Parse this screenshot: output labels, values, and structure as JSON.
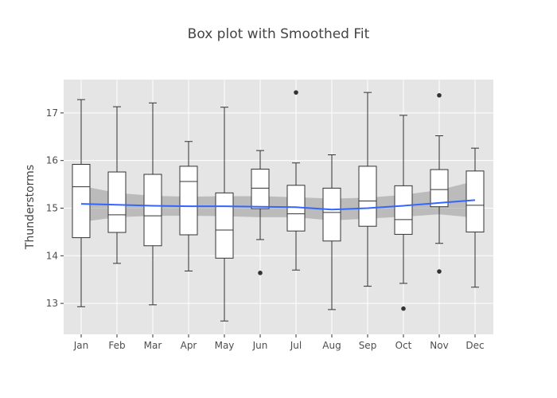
{
  "chart_data": {
    "type": "box",
    "title": "Box plot with Smoothed Fit",
    "xlabel": "",
    "ylabel": "Thunderstorms",
    "ylim": [
      12.35,
      17.7
    ],
    "yticks": [
      13,
      14,
      15,
      16,
      17
    ],
    "grid": true,
    "legend": "none",
    "categories": [
      "Jan",
      "Feb",
      "Mar",
      "Apr",
      "May",
      "Jun",
      "Jul",
      "Aug",
      "Sep",
      "Oct",
      "Nov",
      "Dec"
    ],
    "boxes": [
      {
        "category": "Jan",
        "lower_whisker": 12.93,
        "q1": 14.38,
        "median": 15.45,
        "q3": 15.92,
        "upper_whisker": 17.28,
        "outliers": []
      },
      {
        "category": "Feb",
        "lower_whisker": 13.84,
        "q1": 14.49,
        "median": 14.86,
        "q3": 15.76,
        "upper_whisker": 17.13,
        "outliers": []
      },
      {
        "category": "Mar",
        "lower_whisker": 12.97,
        "q1": 14.21,
        "median": 14.84,
        "q3": 15.71,
        "upper_whisker": 17.21,
        "outliers": []
      },
      {
        "category": "Apr",
        "lower_whisker": 13.68,
        "q1": 14.44,
        "median": 15.56,
        "q3": 15.88,
        "upper_whisker": 16.4,
        "outliers": []
      },
      {
        "category": "May",
        "lower_whisker": 12.63,
        "q1": 13.95,
        "median": 14.54,
        "q3": 15.32,
        "upper_whisker": 17.12,
        "outliers": []
      },
      {
        "category": "Jun",
        "lower_whisker": 14.34,
        "q1": 14.99,
        "median": 15.42,
        "q3": 15.82,
        "upper_whisker": 16.21,
        "outliers": [
          13.64
        ]
      },
      {
        "category": "Jul",
        "lower_whisker": 13.7,
        "q1": 14.52,
        "median": 14.88,
        "q3": 15.48,
        "upper_whisker": 15.95,
        "outliers": [
          17.43
        ]
      },
      {
        "category": "Aug",
        "lower_whisker": 12.87,
        "q1": 14.31,
        "median": 14.91,
        "q3": 15.42,
        "upper_whisker": 16.12,
        "outliers": []
      },
      {
        "category": "Sep",
        "lower_whisker": 13.36,
        "q1": 14.62,
        "median": 15.15,
        "q3": 15.88,
        "upper_whisker": 17.43,
        "outliers": []
      },
      {
        "category": "Oct",
        "lower_whisker": 13.42,
        "q1": 14.45,
        "median": 14.76,
        "q3": 15.47,
        "upper_whisker": 16.95,
        "outliers": [
          12.89
        ]
      },
      {
        "category": "Nov",
        "lower_whisker": 14.26,
        "q1": 15.03,
        "median": 15.39,
        "q3": 15.81,
        "upper_whisker": 16.52,
        "outliers": [
          17.37,
          13.67
        ]
      },
      {
        "category": "Dec",
        "lower_whisker": 13.34,
        "q1": 14.5,
        "median": 15.06,
        "q3": 15.78,
        "upper_whisker": 16.26,
        "outliers": []
      }
    ],
    "smooth_fit": {
      "x": [
        "Jan",
        "Feb",
        "Mar",
        "Apr",
        "May",
        "Jun",
        "Jul",
        "Aug",
        "Sep",
        "Oct",
        "Nov",
        "Dec"
      ],
      "y": [
        15.09,
        15.07,
        15.05,
        15.04,
        15.04,
        15.03,
        15.02,
        14.97,
        15.0,
        15.05,
        15.11,
        15.17
      ],
      "ci_lower": [
        14.71,
        14.81,
        14.84,
        14.84,
        14.83,
        14.81,
        14.81,
        14.74,
        14.78,
        14.82,
        14.87,
        14.8
      ],
      "ci_upper": [
        15.47,
        15.32,
        15.26,
        15.24,
        15.25,
        15.25,
        15.23,
        15.2,
        15.22,
        15.28,
        15.38,
        15.57
      ],
      "line_color": "#3366ff",
      "band_color": "#999999"
    },
    "colors": {
      "panel_bg": "#e5e5e5",
      "gridline": "#ffffff",
      "box_fill": "#ffffff",
      "box_stroke": "#333333",
      "outlier": "#333333"
    }
  }
}
